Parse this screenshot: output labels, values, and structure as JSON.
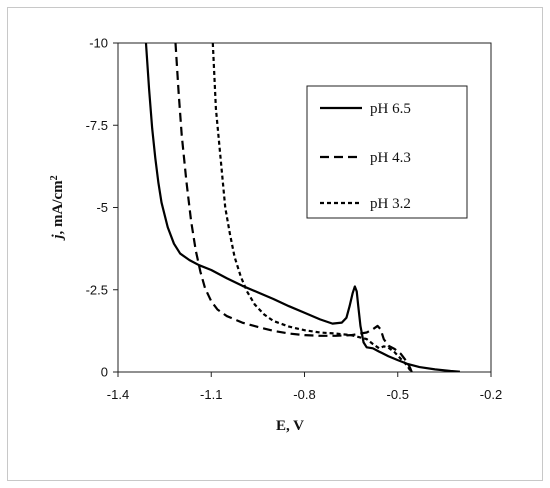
{
  "chart_data": {
    "type": "line",
    "title": "",
    "xlabel": "E, V",
    "ylabel_italic": "j",
    "ylabel_rest": ", mA/cm",
    "ylabel_sup": "2",
    "xlim": [
      -1.4,
      -0.2
    ],
    "ylim": [
      0,
      -10
    ],
    "y_axis_inverted": true,
    "xticks": [
      -1.4,
      -1.1,
      -0.8,
      -0.5,
      -0.2
    ],
    "xtick_labels": [
      "-1.4",
      "-1.1",
      "-0.8",
      "-0.5",
      "-0.2"
    ],
    "yticks": [
      0,
      -2.5,
      -5,
      -7.5,
      -10
    ],
    "ytick_labels": [
      "0",
      "-2.5",
      "-5",
      "-7.5",
      "-10"
    ],
    "grid": false,
    "legend_position": "top-right",
    "series": [
      {
        "name": "pH 6.5",
        "color": "#000000",
        "dash": "solid",
        "points": [
          [
            -1.31,
            -10
          ],
          [
            -1.3,
            -8.6
          ],
          [
            -1.29,
            -7.4
          ],
          [
            -1.28,
            -6.5
          ],
          [
            -1.27,
            -5.75
          ],
          [
            -1.26,
            -5.15
          ],
          [
            -1.24,
            -4.4
          ],
          [
            -1.22,
            -3.9
          ],
          [
            -1.2,
            -3.6
          ],
          [
            -1.17,
            -3.4
          ],
          [
            -1.14,
            -3.25
          ],
          [
            -1.1,
            -3.1
          ],
          [
            -1.05,
            -2.85
          ],
          [
            -1.0,
            -2.62
          ],
          [
            -0.95,
            -2.42
          ],
          [
            -0.9,
            -2.22
          ],
          [
            -0.85,
            -2.0
          ],
          [
            -0.8,
            -1.8
          ],
          [
            -0.75,
            -1.6
          ],
          [
            -0.71,
            -1.47
          ],
          [
            -0.68,
            -1.5
          ],
          [
            -0.665,
            -1.65
          ],
          [
            -0.655,
            -2.0
          ],
          [
            -0.645,
            -2.4
          ],
          [
            -0.638,
            -2.6
          ],
          [
            -0.632,
            -2.45
          ],
          [
            -0.627,
            -2.0
          ],
          [
            -0.62,
            -1.4
          ],
          [
            -0.61,
            -0.9
          ],
          [
            -0.6,
            -0.75
          ],
          [
            -0.58,
            -0.72
          ],
          [
            -0.56,
            -0.62
          ],
          [
            -0.53,
            -0.48
          ],
          [
            -0.5,
            -0.36
          ],
          [
            -0.47,
            -0.25
          ],
          [
            -0.43,
            -0.15
          ],
          [
            -0.38,
            -0.08
          ],
          [
            -0.33,
            -0.03
          ],
          [
            -0.3,
            -0.01
          ]
        ]
      },
      {
        "name": "pH 4.3",
        "color": "#000000",
        "dash": "dashed",
        "points": [
          [
            -1.215,
            -10
          ],
          [
            -1.205,
            -8.5
          ],
          [
            -1.195,
            -7.2
          ],
          [
            -1.18,
            -5.8
          ],
          [
            -1.165,
            -4.6
          ],
          [
            -1.15,
            -3.7
          ],
          [
            -1.135,
            -3.05
          ],
          [
            -1.12,
            -2.55
          ],
          [
            -1.1,
            -2.15
          ],
          [
            -1.08,
            -1.9
          ],
          [
            -1.05,
            -1.7
          ],
          [
            -1.0,
            -1.5
          ],
          [
            -0.95,
            -1.37
          ],
          [
            -0.9,
            -1.25
          ],
          [
            -0.85,
            -1.17
          ],
          [
            -0.8,
            -1.12
          ],
          [
            -0.75,
            -1.1
          ],
          [
            -0.7,
            -1.1
          ],
          [
            -0.65,
            -1.12
          ],
          [
            -0.6,
            -1.2
          ],
          [
            -0.58,
            -1.3
          ],
          [
            -0.565,
            -1.4
          ],
          [
            -0.555,
            -1.3
          ],
          [
            -0.545,
            -1.0
          ],
          [
            -0.53,
            -0.8
          ],
          [
            -0.51,
            -0.7
          ],
          [
            -0.49,
            -0.55
          ],
          [
            -0.47,
            -0.3
          ],
          [
            -0.46,
            -0.12
          ],
          [
            -0.455,
            0
          ]
        ]
      },
      {
        "name": "pH 3.2",
        "color": "#000000",
        "dash": "dotted",
        "points": [
          [
            -1.095,
            -10
          ],
          [
            -1.09,
            -9.0
          ],
          [
            -1.085,
            -8.0
          ],
          [
            -1.075,
            -7.0
          ],
          [
            -1.065,
            -6.0
          ],
          [
            -1.055,
            -5.0
          ],
          [
            -1.04,
            -4.2
          ],
          [
            -1.025,
            -3.5
          ],
          [
            -1.005,
            -2.9
          ],
          [
            -0.985,
            -2.45
          ],
          [
            -0.96,
            -2.05
          ],
          [
            -0.93,
            -1.75
          ],
          [
            -0.9,
            -1.55
          ],
          [
            -0.85,
            -1.38
          ],
          [
            -0.8,
            -1.27
          ],
          [
            -0.75,
            -1.2
          ],
          [
            -0.7,
            -1.17
          ],
          [
            -0.65,
            -1.12
          ],
          [
            -0.6,
            -1.0
          ],
          [
            -0.58,
            -0.85
          ],
          [
            -0.56,
            -0.72
          ],
          [
            -0.545,
            -0.78
          ],
          [
            -0.53,
            -0.74
          ],
          [
            -0.51,
            -0.6
          ],
          [
            -0.49,
            -0.4
          ],
          [
            -0.47,
            -0.2
          ],
          [
            -0.46,
            -0.05
          ]
        ]
      }
    ]
  }
}
